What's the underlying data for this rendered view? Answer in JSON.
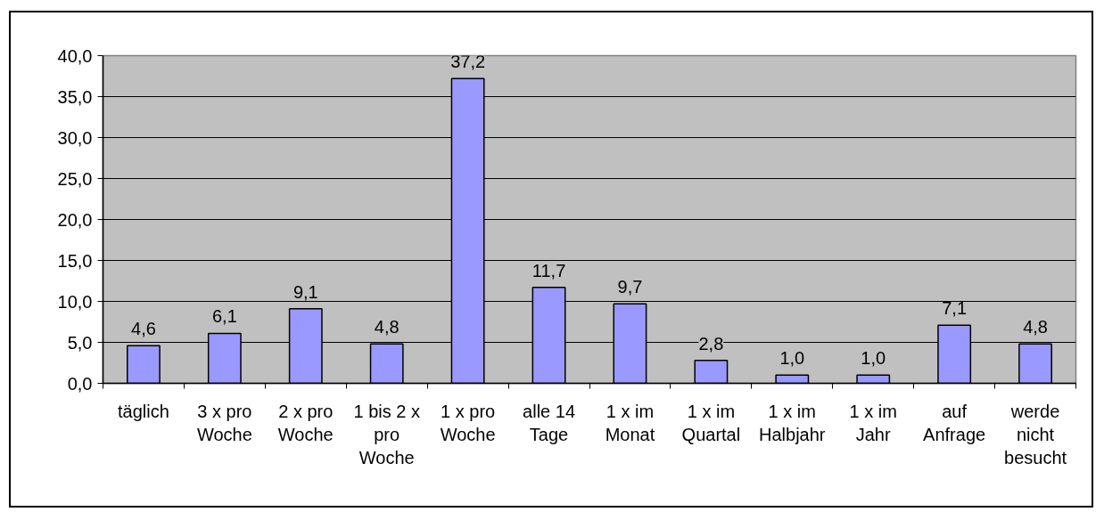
{
  "chart_data": {
    "type": "bar",
    "categories": [
      "täglich",
      "3 x pro Woche",
      "2 x pro Woche",
      "1 bis 2 x pro Woche",
      "1 x pro Woche",
      "alle 14 Tage",
      "1 x im Monat",
      "1 x im Quartal",
      "1 x im Halbjahr",
      "1 x im Jahr",
      "auf Anfrage",
      "werde nicht besucht"
    ],
    "values": [
      4.6,
      6.1,
      9.1,
      4.8,
      37.2,
      11.7,
      9.7,
      2.8,
      1.0,
      1.0,
      7.1,
      4.8
    ],
    "value_labels": [
      "4,6",
      "6,1",
      "9,1",
      "4,8",
      "37,2",
      "11,7",
      "9,7",
      "2,8",
      "1,0",
      "1,0",
      "7,1",
      "4,8"
    ],
    "color": "#9999ff",
    "ylim": [
      0,
      40
    ],
    "yticks": [
      {
        "value": 0,
        "label": "0,0"
      },
      {
        "value": 5,
        "label": "5,0"
      },
      {
        "value": 10,
        "label": "10,0"
      },
      {
        "value": 15,
        "label": "15,0"
      },
      {
        "value": 20,
        "label": "20,0"
      },
      {
        "value": 25,
        "label": "25,0"
      },
      {
        "value": 30,
        "label": "30,0"
      },
      {
        "value": 35,
        "label": "35,0"
      },
      {
        "value": 40,
        "label": "40,0"
      }
    ],
    "grid": "y"
  }
}
